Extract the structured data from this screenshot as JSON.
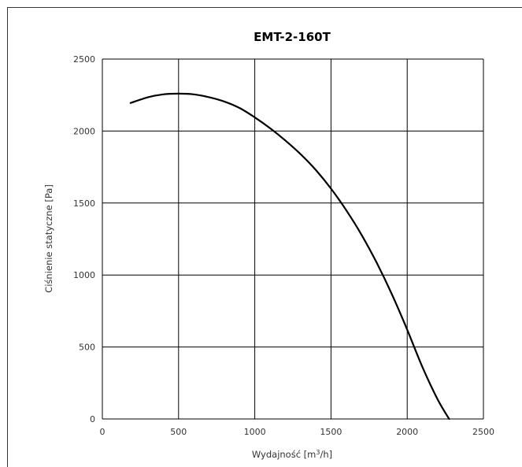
{
  "chart_data": {
    "type": "line",
    "title": "EMT-2-160T",
    "xlabel_prefix": "Wydajność [m",
    "xlabel_sup": "3",
    "xlabel_suffix": "/h]",
    "ylabel": "Ciśnienie statyczne [Pa]",
    "xlim": [
      0,
      2500
    ],
    "ylim": [
      0,
      2500
    ],
    "xticks": [
      "0",
      "500",
      "1000",
      "1500",
      "2000",
      "2500"
    ],
    "yticks": [
      "0",
      "500",
      "1000",
      "1500",
      "2000",
      "2500"
    ],
    "grid": true,
    "series": [
      {
        "color": "#000000",
        "x": [
          185,
          300,
          400,
          500,
          600,
          700,
          800,
          900,
          1000,
          1100,
          1200,
          1300,
          1400,
          1500,
          1600,
          1700,
          1800,
          1900,
          2000,
          2100,
          2200,
          2275
        ],
        "y": [
          2195,
          2235,
          2255,
          2260,
          2255,
          2235,
          2205,
          2160,
          2095,
          2020,
          1935,
          1840,
          1730,
          1600,
          1450,
          1280,
          1085,
          865,
          620,
          360,
          135,
          0
        ]
      }
    ]
  }
}
